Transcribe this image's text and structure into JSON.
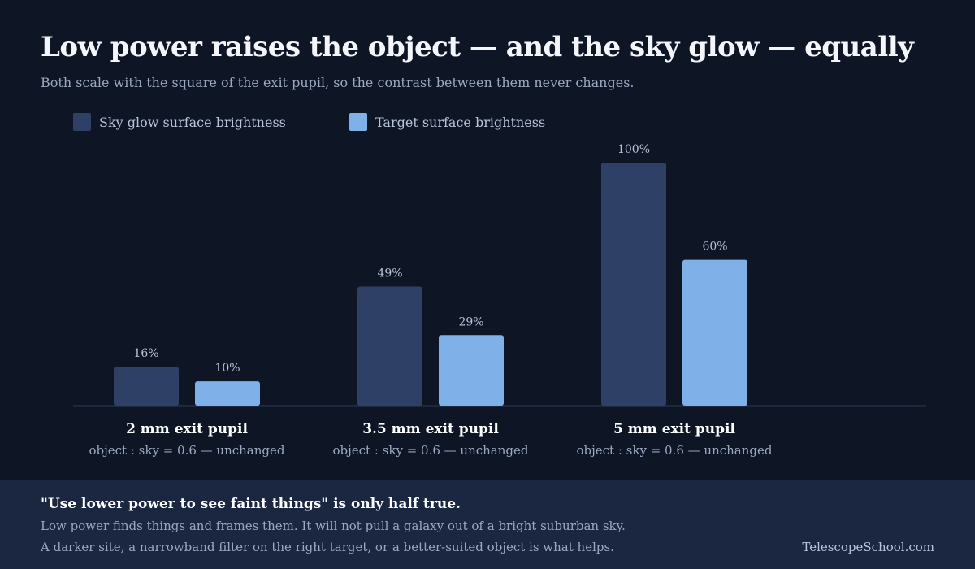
{
  "title": "Low power raises the object — and the sky glow — equally",
  "subtitle": "Both scale with the square of the exit pupil, so the contrast between them never changes.",
  "colors": {
    "sky": "#2e4066",
    "target": "#7fb0e8",
    "background": "#0e1525",
    "footer": "#1b2740"
  },
  "chart_data": {
    "type": "bar",
    "categories": [
      "2 mm exit pupil",
      "3.5 mm exit pupil",
      "5 mm exit pupil"
    ],
    "category_notes": [
      "object : sky = 0.6 — unchanged",
      "object : sky = 0.6 — unchanged",
      "object : sky = 0.6 — unchanged"
    ],
    "series": [
      {
        "name": "Sky glow surface brightness",
        "values": [
          16,
          49,
          100
        ],
        "labels": [
          "16%",
          "49%",
          "100%"
        ],
        "color": "#2e4066"
      },
      {
        "name": "Target surface brightness",
        "values": [
          10,
          29,
          60
        ],
        "labels": [
          "10%",
          "29%",
          "60%"
        ],
        "color": "#7fb0e8"
      }
    ],
    "ylim": [
      0,
      100
    ],
    "legend": "top-left",
    "grid": false
  },
  "footer": {
    "headline": "\"Use lower power to see faint things\" is only half true.",
    "line1": "Low power finds things and frames them. It will not pull a galaxy out of a bright suburban sky.",
    "line2": "A darker site, a narrowband filter on the right target, or a better-suited object is what helps.",
    "brand": "TelescopeSchool.com"
  }
}
